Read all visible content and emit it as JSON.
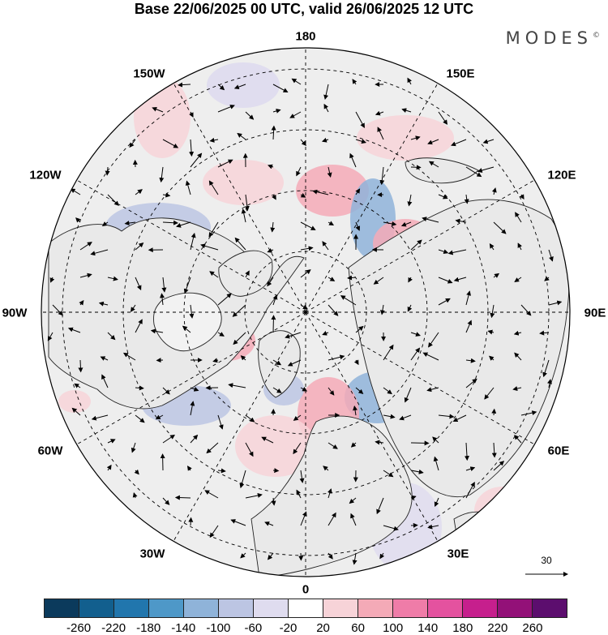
{
  "title": "Base 22/06/2025 00 UTC, valid 26/06/2025 12 UTC",
  "brand": "MODES",
  "brand_mark": "©",
  "longitude_labels": {
    "top": "180",
    "top_right": "150E",
    "right_upper": "120E",
    "right": "90E",
    "right_lower": "60E",
    "bottom_right": "30E",
    "bottom": "0",
    "bottom_left": "30W",
    "left_lower": "60W",
    "left": "90W",
    "left_upper": "120W",
    "top_left": "150W"
  },
  "reference_vector_label": "30",
  "colorbar": {
    "ticks": [
      "-260",
      "-220",
      "-180",
      "-140",
      "-100",
      "-60",
      "-20",
      "20",
      "60",
      "100",
      "140",
      "180",
      "220",
      "260"
    ],
    "colors": [
      "#0b3a5c",
      "#125f8e",
      "#2176ad",
      "#4e98c8",
      "#8fb3d9",
      "#bcc5e3",
      "#dfdcef",
      "#ffffff",
      "#f7d3d8",
      "#f4aab7",
      "#ef7ca8",
      "#e4529f",
      "#c61f8d",
      "#931178",
      "#5c0e6e"
    ]
  },
  "chart_data": {
    "type": "heatmap",
    "projection": "north polar stereographic",
    "field": "anomaly with wind vectors",
    "colorbar_range": [
      -260,
      260
    ],
    "colorbar_step": 40,
    "graticule_longitudes": [
      "0",
      "30E",
      "60E",
      "90E",
      "120E",
      "150E",
      "180",
      "150W",
      "120W",
      "90W",
      "60W",
      "30W"
    ],
    "reference_vector": 30
  }
}
